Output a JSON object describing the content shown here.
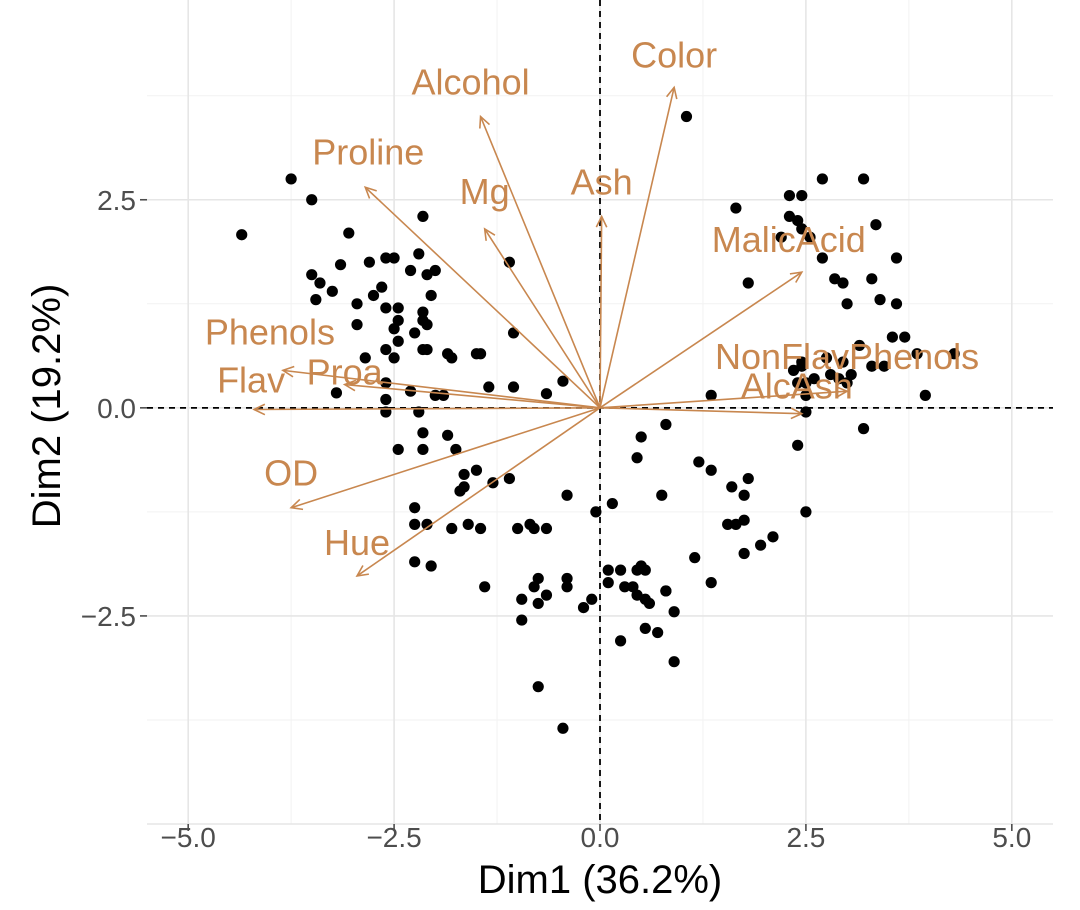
{
  "chart_data": {
    "type": "scatter",
    "title": "",
    "xlabel": "Dim1 (36.2%)",
    "ylabel": "Dim2 (19.2%)",
    "xlim": [
      -5.5,
      5.5
    ],
    "ylim": [
      -5.0,
      4.9
    ],
    "xticks": [
      -5.0,
      -2.5,
      0.0,
      2.5,
      5.0
    ],
    "xtick_labels": [
      "−5.0",
      "−2.5",
      "0.0",
      "2.5",
      "5.0"
    ],
    "yticks": [
      -2.5,
      0.0,
      2.5
    ],
    "ytick_labels": [
      "−2.5",
      "0.0",
      "2.5"
    ],
    "grid": true,
    "colors": {
      "points": "#000000",
      "variables": "#c8874f",
      "grid": "#e6e6e6"
    },
    "variables": [
      {
        "name": "Color",
        "x": 0.9,
        "y": 3.85
      },
      {
        "name": "Alcohol",
        "x": -1.45,
        "y": 3.5
      },
      {
        "name": "Proline",
        "x": -2.85,
        "y": 2.65
      },
      {
        "name": "Mg",
        "x": -1.4,
        "y": 2.15
      },
      {
        "name": "Ash",
        "x": 0.02,
        "y": 2.3
      },
      {
        "name": "MalicAcid",
        "x": 2.45,
        "y": 1.63
      },
      {
        "name": "Phenols",
        "x": -3.85,
        "y": 0.45
      },
      {
        "name": "Proa",
        "x": -3.1,
        "y": 0.28
      },
      {
        "name": "Flav",
        "x": -4.2,
        "y": -0.02
      },
      {
        "name": "NonFlavPhenols",
        "x": 3.0,
        "y": 0.2
      },
      {
        "name": "AlcAsh",
        "x": 2.45,
        "y": -0.07
      },
      {
        "name": "OD",
        "x": -3.75,
        "y": -1.2
      },
      {
        "name": "Hue",
        "x": -2.95,
        "y": -2.02
      }
    ],
    "points": [
      [
        -4.35,
        2.08
      ],
      [
        -3.75,
        2.75
      ],
      [
        -3.5,
        2.5
      ],
      [
        -3.5,
        1.6
      ],
      [
        -3.45,
        1.3
      ],
      [
        -3.4,
        1.5
      ],
      [
        -3.05,
        2.1
      ],
      [
        -3.15,
        1.72
      ],
      [
        -3.25,
        1.4
      ],
      [
        -2.95,
        1.25
      ],
      [
        -2.95,
        1.0
      ],
      [
        -2.85,
        0.6
      ],
      [
        -2.75,
        1.35
      ],
      [
        -2.6,
        1.2
      ],
      [
        -2.65,
        1.45
      ],
      [
        -2.45,
        1.2
      ],
      [
        -2.45,
        1.05
      ],
      [
        -2.5,
        0.95
      ],
      [
        -2.3,
        1.65
      ],
      [
        -2.2,
        1.85
      ],
      [
        -2.1,
        1.6
      ],
      [
        -2.05,
        1.35
      ],
      [
        -2.0,
        1.65
      ],
      [
        -2.15,
        2.3
      ],
      [
        -2.8,
        1.75
      ],
      [
        -2.6,
        1.8
      ],
      [
        -2.5,
        1.8
      ],
      [
        -2.15,
        1.15
      ],
      [
        -2.6,
        0.7
      ],
      [
        -2.5,
        0.6
      ],
      [
        -2.45,
        0.8
      ],
      [
        -2.25,
        0.9
      ],
      [
        -2.15,
        0.7
      ],
      [
        -2.15,
        1.05
      ],
      [
        -2.1,
        1.0
      ],
      [
        -2.1,
        0.7
      ],
      [
        -1.85,
        0.65
      ],
      [
        -1.8,
        0.6
      ],
      [
        -1.5,
        0.65
      ],
      [
        -1.45,
        0.65
      ],
      [
        -1.05,
        0.9
      ],
      [
        -1.1,
        1.75
      ],
      [
        -2.0,
        0.15
      ],
      [
        -2.6,
        0.1
      ],
      [
        -2.6,
        0.3
      ],
      [
        -2.3,
        0.2
      ],
      [
        -1.9,
        0.15
      ],
      [
        -1.35,
        0.25
      ],
      [
        -1.05,
        0.25
      ],
      [
        -0.65,
        0.17
      ],
      [
        -0.45,
        0.32
      ],
      [
        -3.2,
        0.18
      ],
      [
        -2.6,
        -0.05
      ],
      [
        -2.15,
        -0.3
      ],
      [
        -2.2,
        -0.05
      ],
      [
        -1.85,
        -0.33
      ],
      [
        -1.75,
        -0.5
      ],
      [
        -1.65,
        -0.8
      ],
      [
        -1.5,
        -0.75
      ],
      [
        -1.3,
        -0.9
      ],
      [
        -1.1,
        -0.85
      ],
      [
        -1.65,
        -0.95
      ],
      [
        -1.7,
        -1.0
      ],
      [
        -2.15,
        -0.5
      ],
      [
        -2.45,
        -0.5
      ],
      [
        -2.25,
        -1.2
      ],
      [
        -2.25,
        -1.4
      ],
      [
        -1.8,
        -1.45
      ],
      [
        -1.6,
        -1.4
      ],
      [
        -1.45,
        -1.45
      ],
      [
        -1.0,
        -1.45
      ],
      [
        -0.8,
        -1.45
      ],
      [
        -0.65,
        -1.45
      ],
      [
        -0.4,
        -1.05
      ],
      [
        -0.85,
        -1.4
      ],
      [
        -2.25,
        -1.85
      ],
      [
        -2.05,
        -1.9
      ],
      [
        -2.1,
        -1.4
      ],
      [
        -1.4,
        -2.15
      ],
      [
        -0.95,
        -2.55
      ],
      [
        -0.95,
        -2.3
      ],
      [
        -0.8,
        -2.15
      ],
      [
        -0.75,
        -2.05
      ],
      [
        -0.75,
        -2.35
      ],
      [
        -0.4,
        -2.05
      ],
      [
        -0.4,
        -2.15
      ],
      [
        -0.2,
        -2.4
      ],
      [
        -0.1,
        -2.3
      ],
      [
        -0.65,
        -2.25
      ],
      [
        -0.75,
        -3.35
      ],
      [
        -0.45,
        -3.85
      ],
      [
        -0.05,
        -1.25
      ],
      [
        0.15,
        -1.15
      ],
      [
        0.1,
        -1.95
      ],
      [
        0.1,
        -2.1
      ],
      [
        0.25,
        -1.95
      ],
      [
        0.3,
        -2.15
      ],
      [
        0.4,
        -2.15
      ],
      [
        0.45,
        -1.95
      ],
      [
        0.5,
        -1.9
      ],
      [
        0.55,
        -1.95
      ],
      [
        0.45,
        -2.25
      ],
      [
        0.55,
        -2.3
      ],
      [
        0.6,
        -2.35
      ],
      [
        0.55,
        -2.65
      ],
      [
        0.7,
        -2.7
      ],
      [
        0.8,
        -2.2
      ],
      [
        0.8,
        -2.2
      ],
      [
        0.9,
        -2.45
      ],
      [
        0.25,
        -2.8
      ],
      [
        0.9,
        -3.05
      ],
      [
        0.45,
        -0.6
      ],
      [
        0.5,
        -0.35
      ],
      [
        0.8,
        -0.2
      ],
      [
        1.05,
        3.5
      ],
      [
        1.15,
        -1.8
      ],
      [
        0.75,
        -1.05
      ],
      [
        1.2,
        -0.65
      ],
      [
        1.35,
        -0.75
      ],
      [
        1.35,
        -2.1
      ],
      [
        1.6,
        -0.95
      ],
      [
        1.55,
        -1.4
      ],
      [
        1.65,
        -1.4
      ],
      [
        1.75,
        -1.05
      ],
      [
        1.75,
        -1.35
      ],
      [
        1.8,
        -0.85
      ],
      [
        1.75,
        -1.75
      ],
      [
        1.95,
        -1.65
      ],
      [
        2.1,
        -1.55
      ],
      [
        2.5,
        -1.25
      ],
      [
        1.35,
        0.15
      ],
      [
        1.8,
        1.5
      ],
      [
        2.2,
        2.05
      ],
      [
        2.3,
        2.3
      ],
      [
        2.4,
        2.25
      ],
      [
        2.45,
        2.15
      ],
      [
        2.45,
        2.55
      ],
      [
        2.3,
        2.55
      ],
      [
        2.7,
        2.75
      ],
      [
        2.55,
        2.05
      ],
      [
        2.7,
        1.8
      ],
      [
        2.85,
        1.55
      ],
      [
        2.95,
        1.5
      ],
      [
        3.0,
        1.25
      ],
      [
        3.3,
        1.55
      ],
      [
        2.35,
        0.45
      ],
      [
        2.4,
        0.3
      ],
      [
        2.45,
        0.5
      ],
      [
        2.5,
        0.3
      ],
      [
        2.5,
        0.15
      ],
      [
        2.6,
        0.35
      ],
      [
        2.75,
        0.6
      ],
      [
        2.8,
        0.4
      ],
      [
        2.9,
        0.35
      ],
      [
        2.95,
        0.55
      ],
      [
        3.0,
        0.3
      ],
      [
        3.15,
        0.75
      ],
      [
        3.3,
        0.5
      ],
      [
        3.45,
        0.5
      ],
      [
        3.55,
        0.85
      ],
      [
        3.7,
        0.85
      ],
      [
        3.85,
        0.65
      ],
      [
        3.95,
        0.15
      ],
      [
        4.3,
        0.65
      ],
      [
        3.4,
        1.3
      ],
      [
        3.6,
        1.25
      ],
      [
        3.6,
        1.8
      ],
      [
        3.35,
        2.2
      ],
      [
        3.2,
        2.75
      ],
      [
        2.4,
        -0.45
      ],
      [
        2.5,
        -0.05
      ],
      [
        3.2,
        -0.25
      ],
      [
        1.65,
        2.4
      ],
      [
        2.45,
        0.55
      ],
      [
        3.05,
        0.4
      ]
    ]
  }
}
